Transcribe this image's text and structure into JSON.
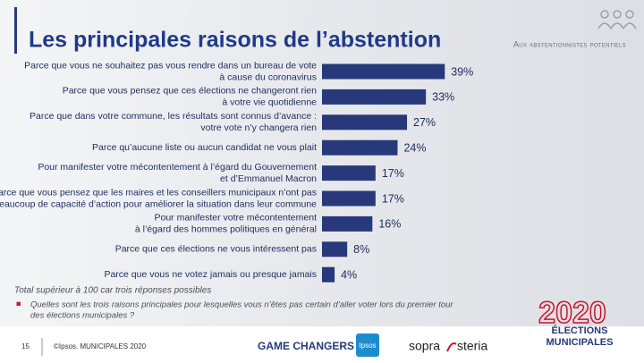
{
  "header": {
    "title": "Les principales raisons de l’abstention",
    "subtitle": "Aux abstentionnistes potentiels"
  },
  "chart_data": {
    "type": "bar",
    "orientation": "horizontal",
    "color": "#27397a",
    "categories": [
      [
        "Parce que vous ne souhaitez pas vous rendre dans un bureau de vote",
        "à cause du coronavirus"
      ],
      [
        "Parce que vous pensez que ces élections ne changeront rien",
        "à votre vie quotidienne"
      ],
      [
        "Parce que dans votre commune, les résultats sont connus d’avance :",
        "votre vote n’y changera rien"
      ],
      [
        "Parce qu’aucune liste ou aucun candidat ne vous plait"
      ],
      [
        "Pour manifester votre mécontentement à l’égard du Gouvernement",
        "et d’Emmanuel Macron"
      ],
      [
        "Parce que vous pensez que les maires et les conseillers municipaux n’ont pas",
        "beaucoup de capacité d’action pour améliorer la situation dans leur commune"
      ],
      [
        "Pour manifester votre mécontentement",
        "à l’égard des hommes politiques en général"
      ],
      [
        "Parce que ces élections ne vous intéressent pas"
      ],
      [
        "Parce que vous ne votez jamais ou presque jamais"
      ]
    ],
    "values": [
      39,
      33,
      27,
      24,
      17,
      17,
      16,
      8,
      4
    ],
    "value_labels": [
      "39%",
      "33%",
      "27%",
      "24%",
      "17%",
      "17%",
      "16%",
      "8%",
      "4%"
    ]
  },
  "notes": {
    "total": "Total supérieur à 100 car trois réponses possibles",
    "question": [
      "Quelles sont les trois raisons principales pour lesquelles vous n’êtes pas certain d’aller voter lors du premier tour",
      "des élections municipales ?"
    ]
  },
  "footer": {
    "page": "15",
    "copyright": "©Ipsos.  MUNICIPALES 2020",
    "game_changers": "GAME CHANGERS",
    "ipsos": "Ipsos",
    "sopra": "sopra",
    "steria": "steria",
    "year": "2020",
    "elections": "ÉLECTIONS",
    "municipales": "MUNICIPALES"
  }
}
